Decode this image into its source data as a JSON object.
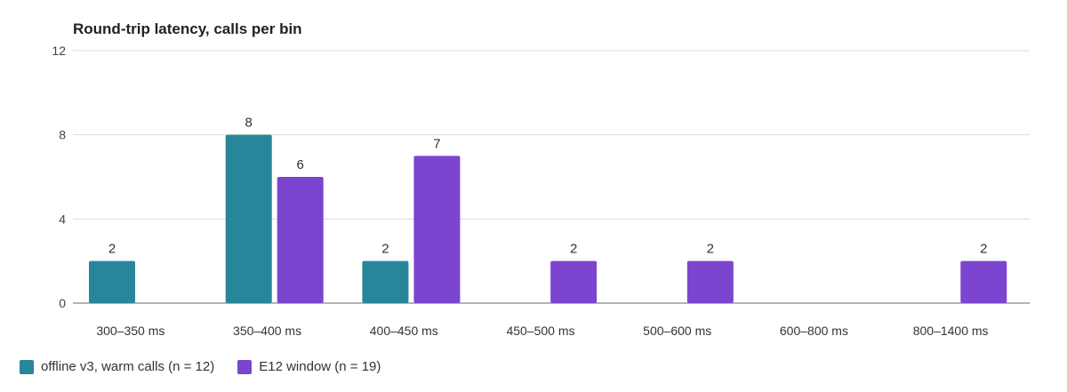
{
  "chart_data": {
    "type": "bar",
    "title": "Round-trip latency, calls per bin",
    "xlabel": "",
    "ylabel": "",
    "categories": [
      "300–350 ms",
      "350–400 ms",
      "400–450 ms",
      "450–500 ms",
      "500–600 ms",
      "600–800 ms",
      "800–1400 ms"
    ],
    "series": [
      {
        "name": "offline v3, warm calls (n = 12)",
        "color": "#27869a",
        "values": [
          2,
          8,
          2,
          0,
          0,
          0,
          0
        ]
      },
      {
        "name": "E12 window (n = 19)",
        "color": "#7b45cf",
        "values": [
          0,
          6,
          7,
          2,
          2,
          0,
          2
        ]
      }
    ],
    "ylim": [
      0,
      12
    ],
    "yticks": [
      0,
      4,
      8,
      12
    ],
    "grid": true,
    "legend_position": "bottom-left",
    "data_labels": true
  }
}
